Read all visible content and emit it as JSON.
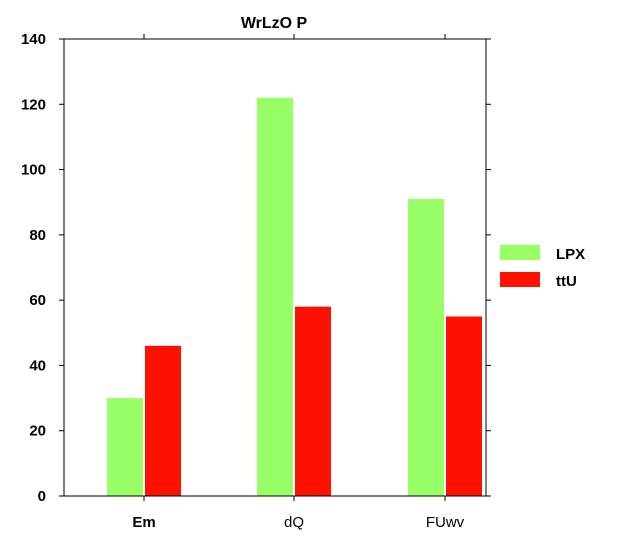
{
  "chart_data": {
    "type": "bar",
    "title": "WrLzO P",
    "xlabel": "",
    "ylabel": "",
    "categories": [
      "Em",
      "dQ",
      "FUwv"
    ],
    "series": [
      {
        "name": "LPX",
        "values": [
          30,
          122,
          91
        ],
        "color": "#99ff66"
      },
      {
        "name": "ttU",
        "values": [
          46,
          58,
          55
        ],
        "color": "#ff1100"
      }
    ],
    "ylim": [
      0,
      140
    ],
    "yticks": [
      0,
      20,
      40,
      60,
      80,
      100,
      120,
      140
    ],
    "grid": false,
    "legend_position": "right"
  }
}
